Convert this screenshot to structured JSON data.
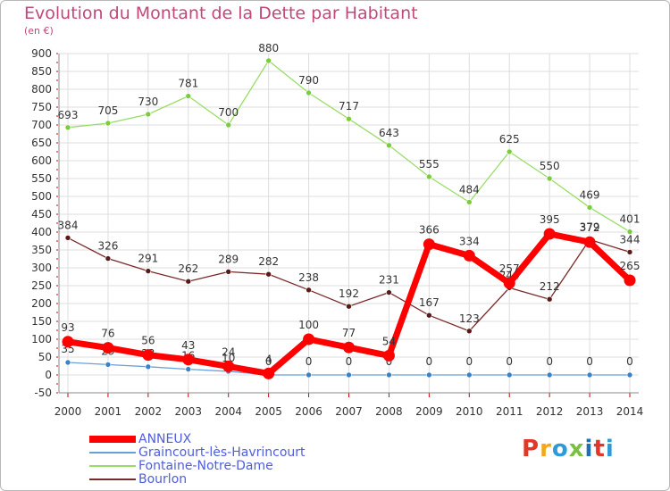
{
  "title": "Evolution du Montant de la Dette par Habitant",
  "subtitle": "(en €)",
  "logo": "Proxiti",
  "logo_colors": [
    "#e0372b",
    "#f2a81d",
    "#2e9ad8",
    "#7ac143",
    "#1f6fb5",
    "#e0372b",
    "#2e9ad8"
  ],
  "chart_data": {
    "type": "line",
    "x": [
      2000,
      2001,
      2002,
      2003,
      2004,
      2005,
      2006,
      2007,
      2008,
      2009,
      2010,
      2011,
      2012,
      2013,
      2014
    ],
    "ylim": [
      -50,
      900
    ],
    "yticks": [
      -50,
      0,
      50,
      100,
      150,
      200,
      250,
      300,
      350,
      400,
      450,
      500,
      550,
      600,
      650,
      700,
      750,
      800,
      850,
      900
    ],
    "grid": true,
    "series": [
      {
        "name": "ANNEUX",
        "color": "#ff0000",
        "marker_color": "#ff0000",
        "thick": true,
        "values": [
          93,
          76,
          56,
          43,
          24,
          4,
          100,
          77,
          54,
          366,
          334,
          257,
          395,
          372,
          265
        ]
      },
      {
        "name": "Graincourt-lès-Havrincourt",
        "color": "#6aa0d8",
        "marker_color": "#3a82c8",
        "thick": false,
        "values": [
          35,
          29,
          23,
          16,
          10,
          0,
          0,
          0,
          0,
          0,
          0,
          0,
          0,
          0,
          0
        ]
      },
      {
        "name": "Fontaine-Notre-Dame",
        "color": "#99dd66",
        "marker_color": "#7acc3c",
        "thick": false,
        "values": [
          693,
          705,
          730,
          781,
          700,
          880,
          790,
          717,
          643,
          555,
          484,
          625,
          550,
          469,
          401
        ]
      },
      {
        "name": "Bourlon",
        "color": "#7a2a2a",
        "marker_color": "#5a1a1a",
        "thick": false,
        "values": [
          384,
          326,
          291,
          262,
          289,
          282,
          238,
          192,
          231,
          167,
          123,
          244,
          212,
          379,
          344
        ]
      }
    ]
  }
}
